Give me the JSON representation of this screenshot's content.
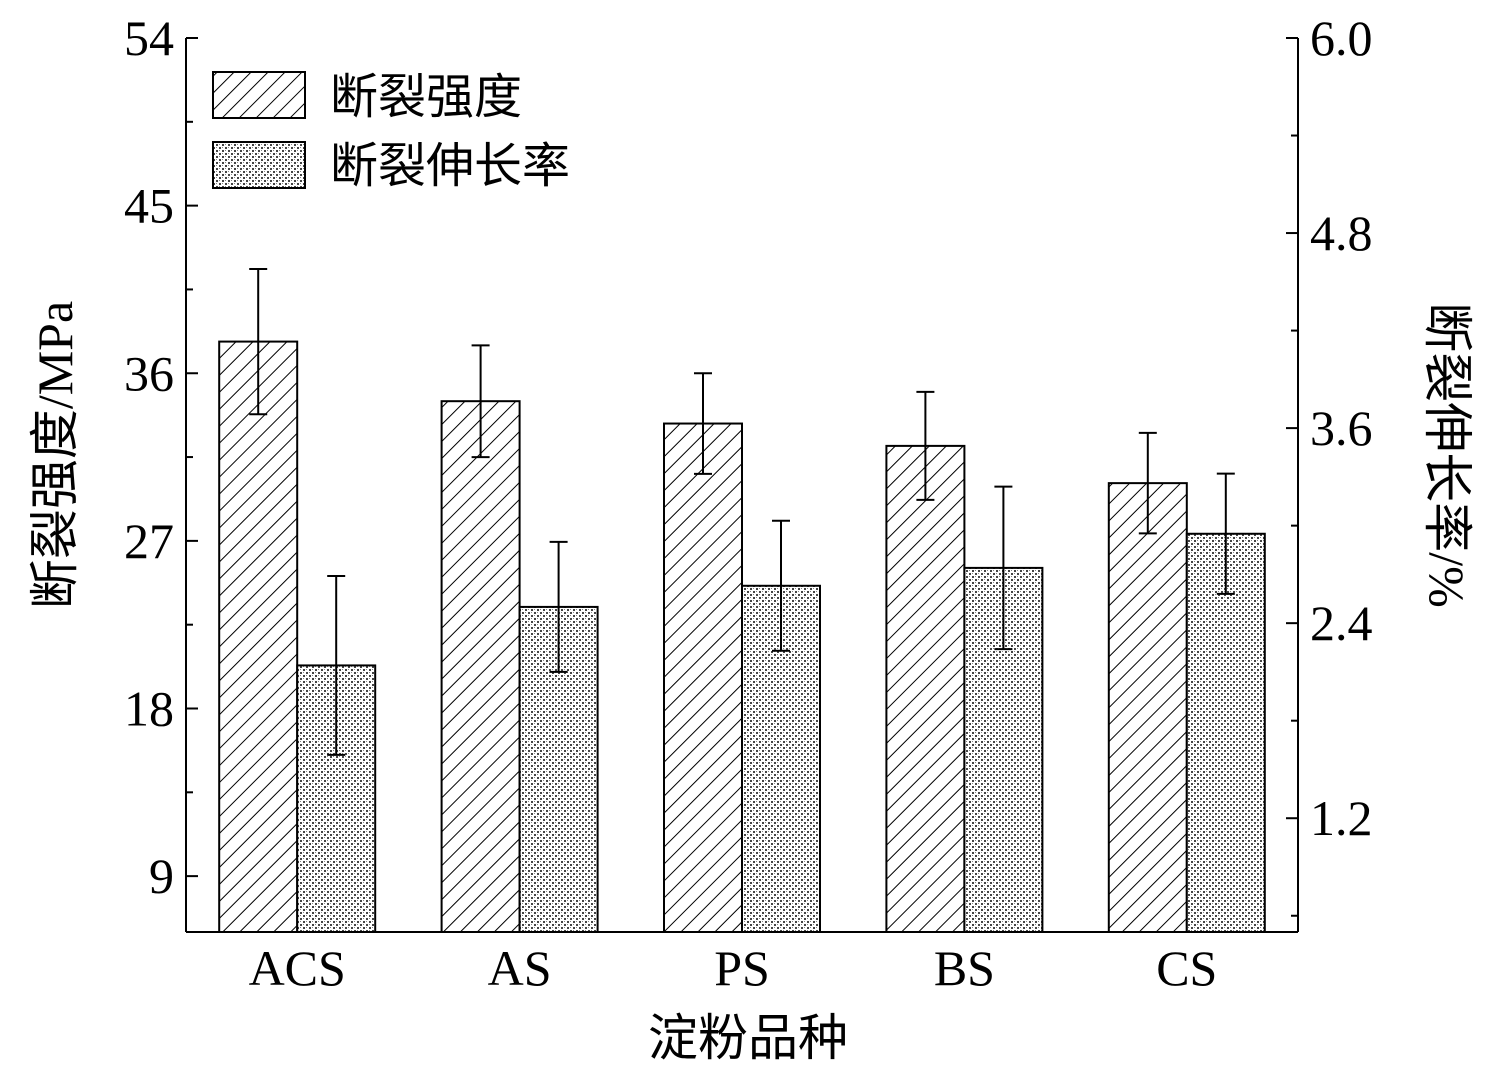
{
  "chart_data": {
    "type": "bar",
    "xlabel": "淀粉品种",
    "categories": [
      "ACS",
      "AS",
      "PS",
      "BS",
      "CS"
    ],
    "y_left": {
      "label": "断裂强度/MPa",
      "lim": [
        6,
        54
      ],
      "ticks": [
        9,
        18,
        27,
        36,
        45,
        54
      ],
      "tick_labels": [
        "9",
        "18",
        "27",
        "36",
        "45",
        "54"
      ]
    },
    "y_right": {
      "label": "断裂伸长率/%",
      "lim": [
        0.5,
        6.0
      ],
      "ticks": [
        1.2,
        2.4,
        3.6,
        4.8,
        6.0
      ],
      "tick_labels": [
        "1.2",
        "2.4",
        "3.6",
        "4.8",
        "6.0"
      ]
    },
    "series": [
      {
        "name": "断裂强度",
        "axis": "left",
        "pattern": "diagonal-hatch",
        "values": [
          37.7,
          34.5,
          33.3,
          32.1,
          30.1
        ],
        "errors": [
          3.9,
          3.0,
          2.7,
          2.9,
          2.7
        ]
      },
      {
        "name": "断裂伸长率",
        "axis": "right",
        "pattern": "dotted-crosshatch",
        "values": [
          2.14,
          2.5,
          2.63,
          2.74,
          2.95
        ],
        "errors": [
          0.55,
          0.4,
          0.4,
          0.5,
          0.37
        ]
      }
    ],
    "legend_position": "top-left",
    "grid": false
  }
}
